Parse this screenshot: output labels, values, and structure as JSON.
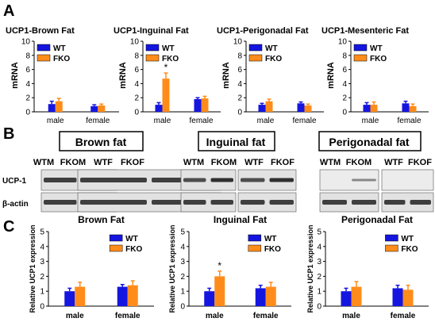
{
  "panel_labels": [
    "A",
    "B",
    "C"
  ],
  "colors": {
    "wt": "#1515e0",
    "fko": "#ff8c1a",
    "axis": "#000000"
  },
  "chart_data": [
    {
      "type": "bar",
      "panel": "A",
      "title": "UCP1-Brown Fat",
      "ylabel": "mRNA",
      "xlabel": "",
      "categories": [
        "male",
        "female"
      ],
      "ylim": [
        0,
        10
      ],
      "yticks": [
        0,
        2,
        4,
        6,
        8,
        10
      ],
      "series": [
        {
          "name": "WT",
          "values": [
            1.1,
            0.8
          ],
          "errors": [
            0.4,
            0.2
          ]
        },
        {
          "name": "FKO",
          "values": [
            1.5,
            0.9
          ],
          "errors": [
            0.4,
            0.2
          ]
        }
      ],
      "annotations": [],
      "legend": "top-left",
      "grid": false
    },
    {
      "type": "bar",
      "panel": "A",
      "title": "UCP1-Inguinal Fat",
      "ylabel": "mRNA",
      "xlabel": "",
      "categories": [
        "male",
        "female"
      ],
      "ylim": [
        0,
        10
      ],
      "yticks": [
        0,
        2,
        4,
        6,
        8,
        10
      ],
      "series": [
        {
          "name": "WT",
          "values": [
            1.0,
            1.8
          ],
          "errors": [
            0.3,
            0.2
          ]
        },
        {
          "name": "FKO",
          "values": [
            4.7,
            1.9
          ],
          "errors": [
            0.8,
            0.3
          ]
        }
      ],
      "annotations": [
        {
          "text": "*",
          "category": "male",
          "series": "FKO"
        }
      ],
      "legend": "top-left",
      "grid": false
    },
    {
      "type": "bar",
      "panel": "A",
      "title": "UCP1-Perigonadal Fat",
      "ylabel": "mRNA",
      "xlabel": "",
      "categories": [
        "male",
        "female"
      ],
      "ylim": [
        0,
        10
      ],
      "yticks": [
        0,
        2,
        4,
        6,
        8,
        10
      ],
      "series": [
        {
          "name": "WT",
          "values": [
            1.0,
            1.2
          ],
          "errors": [
            0.2,
            0.2
          ]
        },
        {
          "name": "FKO",
          "values": [
            1.5,
            0.9
          ],
          "errors": [
            0.3,
            0.2
          ]
        }
      ],
      "annotations": [],
      "legend": "top-left",
      "grid": false
    },
    {
      "type": "bar",
      "panel": "A",
      "title": "UCP1-Mesenteric Fat",
      "ylabel": "mRNA",
      "xlabel": "",
      "categories": [
        "male",
        "female"
      ],
      "ylim": [
        0,
        10
      ],
      "yticks": [
        0,
        2,
        4,
        6,
        8,
        10
      ],
      "series": [
        {
          "name": "WT",
          "values": [
            1.0,
            1.2
          ],
          "errors": [
            0.3,
            0.3
          ]
        },
        {
          "name": "FKO",
          "values": [
            1.0,
            0.8
          ],
          "errors": [
            0.4,
            0.3
          ]
        }
      ],
      "annotations": [],
      "legend": "top-left",
      "grid": false
    },
    {
      "type": "bar",
      "panel": "C",
      "title": "Brown Fat",
      "ylabel": "Relative UCP1 expression",
      "xlabel": "",
      "categories": [
        "male",
        "female"
      ],
      "ylim": [
        0,
        5
      ],
      "yticks": [
        0,
        1,
        2,
        3,
        4,
        5
      ],
      "series": [
        {
          "name": "WT",
          "values": [
            1.0,
            1.3
          ],
          "errors": [
            0.2,
            0.15
          ]
        },
        {
          "name": "FKO",
          "values": [
            1.3,
            1.4
          ],
          "errors": [
            0.3,
            0.3
          ]
        }
      ],
      "annotations": [],
      "legend": "top-right",
      "grid": false
    },
    {
      "type": "bar",
      "panel": "C",
      "title": "Inguinal Fat",
      "ylabel": "Relative UCP1 expression",
      "xlabel": "",
      "categories": [
        "male",
        "female"
      ],
      "ylim": [
        0,
        5
      ],
      "yticks": [
        0,
        1,
        2,
        3,
        4,
        5
      ],
      "series": [
        {
          "name": "WT",
          "values": [
            1.0,
            1.2
          ],
          "errors": [
            0.2,
            0.2
          ]
        },
        {
          "name": "FKO",
          "values": [
            2.0,
            1.3
          ],
          "errors": [
            0.35,
            0.3
          ]
        }
      ],
      "annotations": [
        {
          "text": "*",
          "category": "male",
          "series": "FKO"
        }
      ],
      "legend": "top-right",
      "grid": false
    },
    {
      "type": "bar",
      "panel": "C",
      "title": "Perigonadal Fat",
      "ylabel": "Relative UCP1 expression",
      "xlabel": "",
      "categories": [
        "male",
        "female"
      ],
      "ylim": [
        0,
        5
      ],
      "yticks": [
        0,
        1,
        2,
        3,
        4,
        5
      ],
      "series": [
        {
          "name": "WT",
          "values": [
            1.0,
            1.2
          ],
          "errors": [
            0.2,
            0.2
          ]
        },
        {
          "name": "FKO",
          "values": [
            1.3,
            1.1
          ],
          "errors": [
            0.35,
            0.3
          ]
        }
      ],
      "annotations": [],
      "legend": "top-right",
      "grid": false
    }
  ],
  "blots": {
    "row_labels": [
      "UCP-1",
      "β-actin"
    ],
    "groups": [
      {
        "title": "Brown fat",
        "lanes": [
          "WTM",
          "FKOM",
          "WTF",
          "FKOF"
        ]
      },
      {
        "title": "Inguinal fat",
        "lanes": [
          "WTM",
          "FKOM",
          "WTF",
          "FKOF"
        ]
      },
      {
        "title": "Perigonadal fat",
        "lanes": [
          "WTM",
          "FKOM",
          "WTF",
          "FKOF"
        ]
      }
    ]
  }
}
